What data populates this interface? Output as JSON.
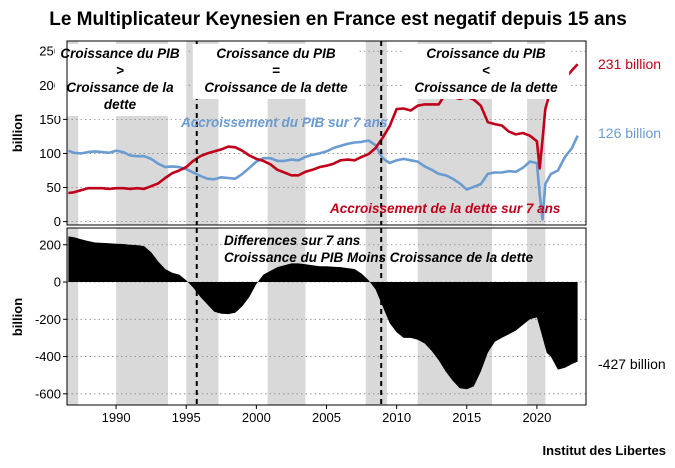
{
  "chart_data": {
    "type": "line",
    "title": "Le Multiplicateur Keynesien en France est negatif depuis 15 ans",
    "source": "Institut des Libertes",
    "x_range": [
      1986.5,
      2023.5
    ],
    "x_ticks": [
      1990,
      1995,
      2000,
      2005,
      2010,
      2015,
      2020
    ],
    "recessions": [
      [
        1986.5,
        1987.3
      ],
      [
        1990.0,
        1993.7
      ],
      [
        1995.0,
        1997.3
      ],
      [
        2000.8,
        2003.5
      ],
      [
        2007.8,
        2009.3
      ],
      [
        2011.5,
        2016.8
      ],
      [
        2019.3,
        2020.6
      ]
    ],
    "markers": [
      1995.75,
      2008.9
    ],
    "panels": [
      {
        "ylabel": "billion",
        "ylim": [
          -5,
          265
        ],
        "yticks": [
          "0",
          "50",
          "100",
          "150",
          "200",
          "250"
        ],
        "series": [
          {
            "name": "Accroissement du PIB sur 7 ans",
            "color": "#6b9bd1",
            "end_label": "126 billion",
            "x": [
              1986.6,
              1987.0,
              1987.5,
              1988.0,
              1988.5,
              1989.0,
              1989.5,
              1990.0,
              1990.5,
              1991.0,
              1991.5,
              1992.0,
              1992.5,
              1993.0,
              1993.5,
              1994.0,
              1994.5,
              1995.0,
              1995.5,
              1996.0,
              1996.5,
              1997.0,
              1997.5,
              1998.0,
              1998.5,
              1999.0,
              1999.5,
              2000.0,
              2000.5,
              2001.0,
              2001.5,
              2002.0,
              2002.5,
              2003.0,
              2003.5,
              2004.0,
              2004.5,
              2005.0,
              2005.5,
              2006.0,
              2006.5,
              2007.0,
              2007.5,
              2008.0,
              2008.5,
              2009.0,
              2009.5,
              2010.0,
              2010.5,
              2011.0,
              2011.5,
              2012.0,
              2012.5,
              2013.0,
              2013.5,
              2014.0,
              2014.5,
              2015.0,
              2015.5,
              2016.0,
              2016.5,
              2017.0,
              2017.5,
              2018.0,
              2018.5,
              2019.0,
              2019.5,
              2020.0,
              2020.2,
              2020.4,
              2020.6,
              2021.0,
              2021.5,
              2022.0,
              2022.5,
              2022.9
            ],
            "values": [
              104,
              101,
              100,
              102,
              103,
              102,
              101,
              104,
              102,
              97,
              96,
              96,
              92,
              85,
              80,
              81,
              80,
              77,
              72,
              67,
              63,
              62,
              65,
              64,
              63,
              70,
              79,
              88,
              93,
              93,
              89,
              89,
              91,
              90,
              95,
              98,
              100,
              103,
              108,
              111,
              114,
              116,
              117,
              119,
              112,
              93,
              86,
              90,
              92,
              90,
              88,
              81,
              76,
              70,
              68,
              63,
              56,
              47,
              51,
              55,
              70,
              72,
              72,
              74,
              73,
              79,
              88,
              86,
              40,
              3,
              55,
              70,
              75,
              95,
              108,
              126
            ]
          },
          {
            "name": "Accroissement de la dette sur 7 ans",
            "color": "#c0001a",
            "end_label": "231 billion",
            "x": [
              1986.6,
              1987.0,
              1987.5,
              1988.0,
              1988.5,
              1989.0,
              1989.5,
              1990.0,
              1990.5,
              1991.0,
              1991.5,
              1992.0,
              1992.5,
              1993.0,
              1993.5,
              1994.0,
              1994.5,
              1995.0,
              1995.5,
              1996.0,
              1996.5,
              1997.0,
              1997.5,
              1998.0,
              1998.5,
              1999.0,
              1999.5,
              2000.0,
              2000.5,
              2001.0,
              2001.5,
              2002.0,
              2002.5,
              2003.0,
              2003.5,
              2004.0,
              2004.5,
              2005.0,
              2005.5,
              2006.0,
              2006.5,
              2007.0,
              2007.5,
              2008.0,
              2008.5,
              2009.0,
              2009.5,
              2010.0,
              2010.5,
              2011.0,
              2011.5,
              2012.0,
              2012.5,
              2013.0,
              2013.5,
              2014.0,
              2014.5,
              2015.0,
              2015.5,
              2016.0,
              2016.5,
              2017.0,
              2017.5,
              2018.0,
              2018.5,
              2019.0,
              2019.5,
              2020.0,
              2020.2,
              2020.4,
              2020.6,
              2021.0,
              2021.5,
              2022.0,
              2022.5,
              2022.9
            ],
            "values": [
              42,
              43,
              46,
              49,
              49,
              49,
              48,
              49,
              49,
              48,
              49,
              48,
              52,
              56,
              64,
              71,
              75,
              80,
              89,
              96,
              100,
              103,
              106,
              110,
              109,
              104,
              97,
              92,
              89,
              84,
              76,
              72,
              68,
              68,
              73,
              76,
              80,
              82,
              85,
              90,
              91,
              90,
              95,
              99,
              108,
              123,
              140,
              165,
              166,
              163,
              170,
              172,
              172,
              172,
              188,
              183,
              180,
              183,
              179,
              170,
              146,
              143,
              141,
              132,
              128,
              130,
              126,
              118,
              78,
              120,
              165,
              195,
              210,
              210,
              222,
              231
            ]
          }
        ],
        "annotations": [
          {
            "lines": [
              "Croissance du PIB",
              ">",
              "Croissance de la",
              "dette"
            ]
          },
          {
            "lines": [
              "Croissance du PIB",
              "=",
              "Croissance de la dette"
            ]
          },
          {
            "lines": [
              "Croissance du PIB",
              "<",
              "Croissance de la dette"
            ]
          }
        ]
      },
      {
        "ylabel": "billion",
        "ylim": [
          -660,
          290
        ],
        "yticks": [
          "-600",
          "-400",
          "-200",
          "0",
          "200"
        ],
        "series": [
          {
            "name": "Differences sur 7 ans Croissance du PIB Moins Croissance de la dette",
            "type": "area",
            "color": "#000000",
            "end_label": "-427 billion",
            "x": [
              1986.6,
              1987.0,
              1987.5,
              1988.0,
              1988.5,
              1989.0,
              1989.5,
              1990.0,
              1990.5,
              1991.0,
              1991.5,
              1992.0,
              1992.5,
              1993.0,
              1993.5,
              1994.0,
              1994.5,
              1995.0,
              1995.5,
              1996.0,
              1996.5,
              1997.0,
              1997.5,
              1998.0,
              1998.5,
              1999.0,
              1999.5,
              2000.0,
              2000.5,
              2001.0,
              2001.5,
              2002.0,
              2002.5,
              2003.0,
              2003.5,
              2004.0,
              2004.5,
              2005.0,
              2005.5,
              2006.0,
              2006.5,
              2007.0,
              2007.5,
              2008.0,
              2008.5,
              2009.0,
              2009.5,
              2010.0,
              2010.5,
              2011.0,
              2011.5,
              2012.0,
              2012.5,
              2013.0,
              2013.5,
              2014.0,
              2014.5,
              2015.0,
              2015.5,
              2016.0,
              2016.5,
              2017.0,
              2017.5,
              2018.0,
              2018.5,
              2019.0,
              2019.5,
              2020.0,
              2020.3,
              2020.7,
              2021.0,
              2021.5,
              2022.0,
              2022.5,
              2022.9
            ],
            "values": [
              245,
              240,
              230,
              220,
              212,
              210,
              208,
              205,
              204,
              200,
              198,
              193,
              160,
              110,
              70,
              50,
              40,
              10,
              -30,
              -80,
              -120,
              -160,
              -170,
              -172,
              -165,
              -130,
              -80,
              -10,
              40,
              60,
              80,
              90,
              100,
              100,
              95,
              90,
              85,
              85,
              82,
              80,
              75,
              70,
              45,
              10,
              -40,
              -130,
              -220,
              -270,
              -300,
              -300,
              -310,
              -330,
              -370,
              -420,
              -480,
              -530,
              -570,
              -575,
              -560,
              -480,
              -380,
              -320,
              -300,
              -280,
              -260,
              -230,
              -200,
              -190,
              -270,
              -380,
              -400,
              -470,
              -460,
              -440,
              -427
            ]
          }
        ],
        "annotations": [
          {
            "lines": [
              "Differences sur 7 ans",
              "Croissance du PIB Moins Croissance de la dette"
            ]
          }
        ]
      }
    ]
  }
}
